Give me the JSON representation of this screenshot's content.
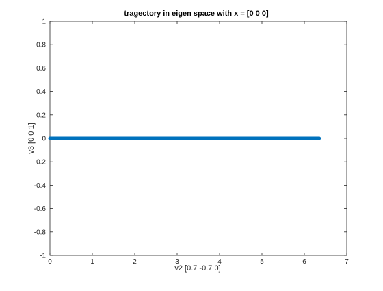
{
  "chart_data": {
    "type": "line",
    "title": "tragectory in eigen space with x = [0 0 0]",
    "xlabel": "v2 [0.7 -0.7 0]",
    "ylabel": "v3 [0 0 1]",
    "xlim": [
      0,
      7
    ],
    "ylim": [
      -1,
      1
    ],
    "xticks": [
      "0",
      "1",
      "2",
      "3",
      "4",
      "5",
      "6",
      "7"
    ],
    "yticks": [
      "-1",
      "-0.8",
      "-0.6",
      "-0.4",
      "-0.2",
      "0",
      "0.2",
      "0.4",
      "0.6",
      "0.8",
      "1"
    ],
    "grid": false,
    "series": [
      {
        "color": "#0072BD",
        "marker": "dot",
        "x_start": 0,
        "x_end": 6.35,
        "y": 0
      }
    ]
  }
}
